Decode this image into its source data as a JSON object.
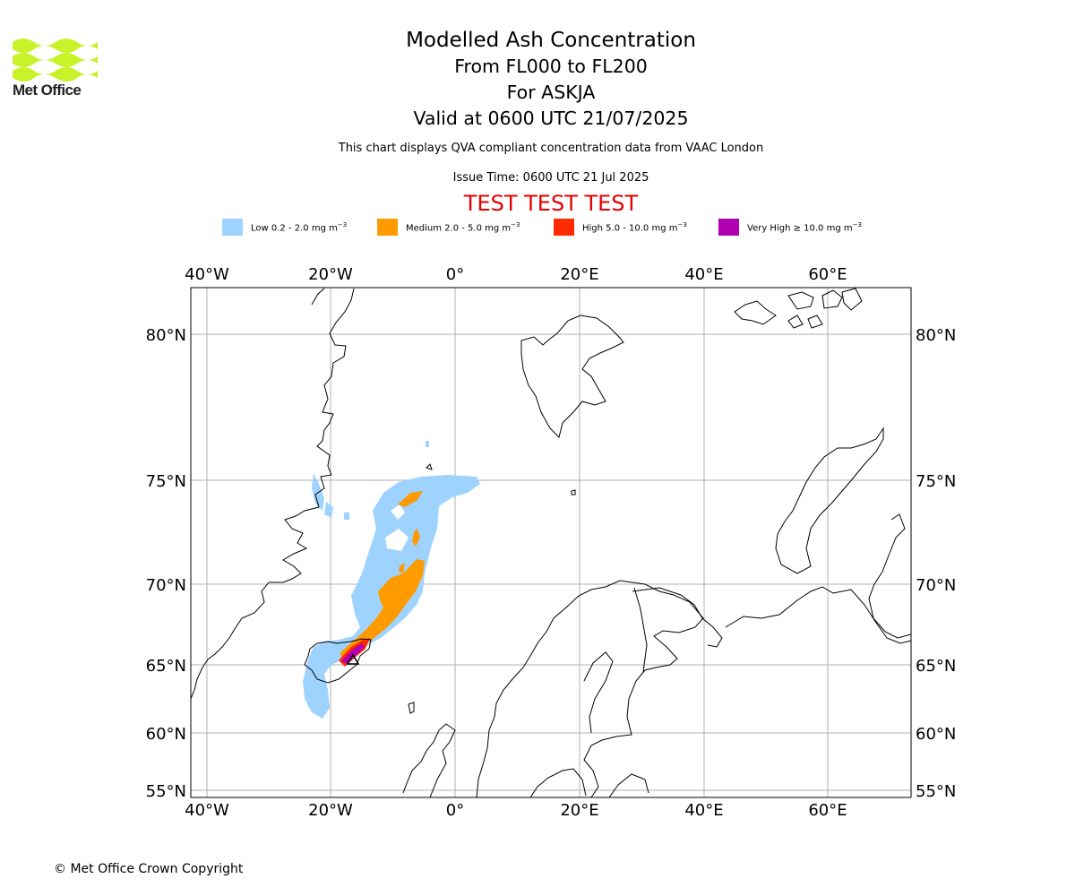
{
  "logo": {
    "text": "Met Office",
    "color": "#c8f22a"
  },
  "title": {
    "line1": "Modelled Ash Concentration",
    "line2": "From FL000 to FL200",
    "line3": "For ASKJA",
    "line4": "Valid at 0600 UTC 21/07/2025"
  },
  "subtitle": "This chart displays QVA compliant concentration data from VAAC London",
  "issue_time": "Issue Time: 0600 UTC 21 Jul 2025",
  "banner": "TEST TEST TEST",
  "legend": [
    {
      "label": "Low 0.2 - 2.0 mg m",
      "exp": "−3",
      "color": "#9fd3ff"
    },
    {
      "label": "Medium 2.0 - 5.0 mg m",
      "exp": "−3",
      "color": "#ff9a00"
    },
    {
      "label": "High 5.0 - 10.0 mg m",
      "exp": "−3",
      "color": "#ff2a00"
    },
    {
      "label": "Very High ≥ 10.0 mg m",
      "exp": "−3",
      "color": "#b000b0"
    }
  ],
  "map": {
    "lon_ticks": [
      "40°W",
      "20°W",
      "0°",
      "20°E",
      "40°E",
      "60°E"
    ],
    "lat_ticks": [
      "80°N",
      "75°N",
      "70°N",
      "65°N",
      "60°N",
      "55°N"
    ],
    "volcano": "ASKJA"
  },
  "copyright": "© Met Office Crown Copyright"
}
